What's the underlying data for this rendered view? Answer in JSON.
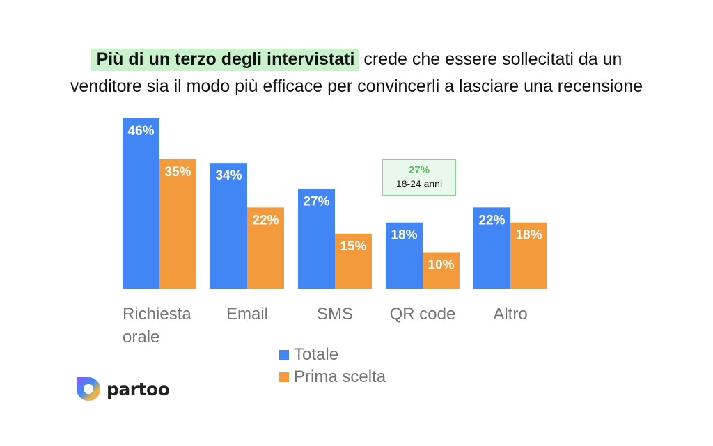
{
  "title": {
    "highlight": "Più di un terzo degli intervistati",
    "line1_rest": " crede che essere sollecitati da un",
    "line2": "venditore sia il modo più efficace per convincerli a lasciare una recensione"
  },
  "colors": {
    "totale": "#4285f4",
    "prima_scelta": "#f29a3c",
    "highlight": "#c9f2cc",
    "callout_border": "#86d48c",
    "callout_value": "#5fbd65"
  },
  "chart_data": {
    "type": "bar",
    "categories": [
      [
        "Richiesta",
        "orale"
      ],
      [
        "Email"
      ],
      [
        "SMS"
      ],
      [
        "QR code"
      ],
      [
        "Altro"
      ]
    ],
    "series": [
      {
        "name": "Totale",
        "values": [
          46,
          34,
          27,
          18,
          22
        ]
      },
      {
        "name": "Prima scelta",
        "values": [
          35,
          22,
          15,
          10,
          18
        ]
      }
    ],
    "value_suffix": "%",
    "ylim": [
      0,
      46
    ],
    "grid": false,
    "legend_position": "bottom-center"
  },
  "callout": {
    "value": "27%",
    "text": "18-24 anni"
  },
  "logo": {
    "text": "partoo",
    "icon": "partoo-logo-icon"
  }
}
